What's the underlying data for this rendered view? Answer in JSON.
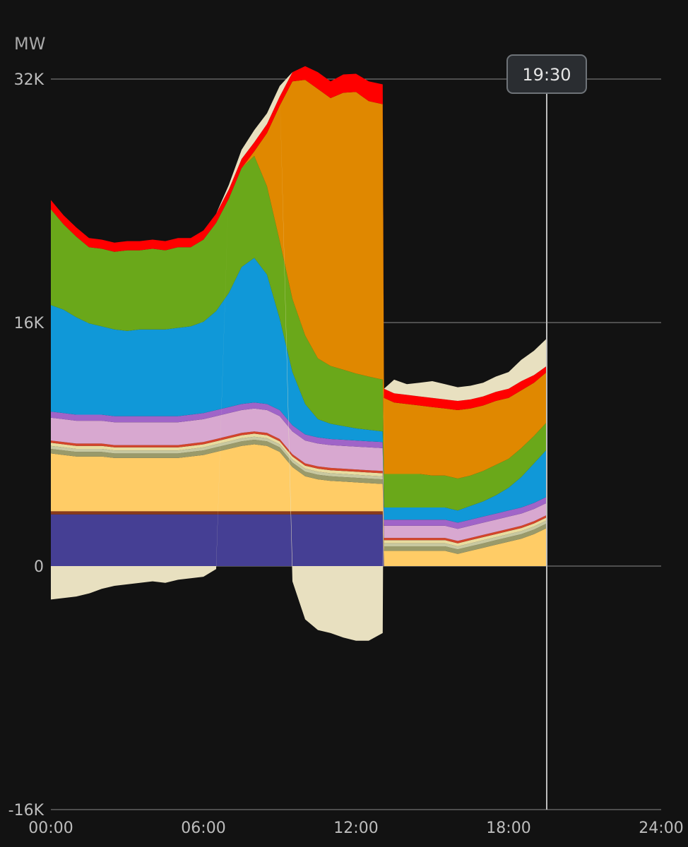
{
  "chart_data": {
    "type": "area",
    "stacked": true,
    "unit": "MW",
    "x_axis": {
      "min": "00:00",
      "max": "24:00",
      "tick_labels": [
        "00:00",
        "06:00",
        "12:00",
        "18:00",
        "24:00"
      ]
    },
    "y_axis": {
      "min": -16000,
      "max": 32000,
      "tick_values": [
        -16000,
        0,
        16000,
        32000
      ],
      "tick_labels": [
        "-16K",
        "0",
        "16K",
        "32K"
      ]
    },
    "gridlines": true,
    "cursor": {
      "time": "19:30",
      "label": "19:30"
    },
    "x_hours": [
      0,
      0.5,
      1,
      1.5,
      2,
      2.5,
      3,
      3.5,
      4,
      4.5,
      5,
      5.5,
      6,
      6.5,
      7,
      7.5,
      8,
      8.5,
      9,
      9.5,
      10,
      10.5,
      11,
      11.5,
      12,
      12.5,
      13.05,
      13.1,
      13.5,
      14,
      14.5,
      15,
      15.5,
      16,
      16.5,
      17,
      17.5,
      18,
      18.5,
      19,
      19.5
    ],
    "series": [
      {
        "color": "#453f94",
        "values": [
          3400,
          3400,
          3400,
          3400,
          3400,
          3400,
          3400,
          3400,
          3400,
          3400,
          3400,
          3400,
          3400,
          3400,
          3400,
          3400,
          3400,
          3400,
          3400,
          3400,
          3400,
          3400,
          3400,
          3400,
          3400,
          3400,
          3400,
          0,
          0,
          0,
          0,
          0,
          0,
          0,
          0,
          0,
          0,
          0,
          0,
          0,
          0
        ]
      },
      {
        "color": "#8a3a1a",
        "values": [
          200,
          200,
          200,
          200,
          200,
          200,
          200,
          200,
          200,
          200,
          200,
          200,
          200,
          200,
          200,
          200,
          200,
          200,
          200,
          200,
          200,
          200,
          200,
          200,
          200,
          200,
          200,
          0,
          0,
          0,
          0,
          0,
          0,
          0,
          0,
          0,
          0,
          0,
          0,
          0,
          0
        ]
      },
      {
        "color": "#ffcc66",
        "values": [
          3800,
          3700,
          3600,
          3600,
          3600,
          3500,
          3500,
          3500,
          3500,
          3500,
          3500,
          3600,
          3700,
          3900,
          4100,
          4300,
          4400,
          4300,
          3900,
          2900,
          2300,
          2100,
          2000,
          1950,
          1900,
          1850,
          1800,
          1000,
          1000,
          1000,
          1000,
          1000,
          1000,
          800,
          1000,
          1200,
          1400,
          1600,
          1800,
          2100,
          2500
        ]
      },
      {
        "color": "#9a9a6a",
        "values": [
          300,
          300,
          300,
          300,
          300,
          300,
          300,
          300,
          300,
          300,
          300,
          300,
          300,
          300,
          300,
          300,
          300,
          300,
          300,
          300,
          300,
          300,
          300,
          300,
          300,
          300,
          300,
          300,
          300,
          300,
          300,
          300,
          300,
          300,
          300,
          300,
          300,
          300,
          300,
          300,
          300
        ]
      },
      {
        "color": "#c8c8a0",
        "values": [
          200,
          200,
          200,
          200,
          200,
          200,
          200,
          200,
          200,
          200,
          200,
          200,
          200,
          200,
          200,
          200,
          200,
          200,
          200,
          200,
          200,
          200,
          200,
          200,
          200,
          200,
          200,
          200,
          200,
          200,
          200,
          200,
          200,
          200,
          200,
          200,
          200,
          200,
          200,
          200,
          200
        ]
      },
      {
        "color": "#e8dca0",
        "values": [
          200,
          200,
          200,
          200,
          200,
          200,
          200,
          200,
          200,
          200,
          200,
          200,
          200,
          200,
          200,
          200,
          200,
          200,
          200,
          200,
          200,
          200,
          200,
          200,
          200,
          200,
          200,
          200,
          200,
          200,
          200,
          200,
          200,
          200,
          200,
          200,
          200,
          200,
          200,
          200,
          200
        ]
      },
      {
        "color": "#d4442a",
        "values": [
          150,
          150,
          150,
          150,
          150,
          150,
          150,
          150,
          150,
          150,
          150,
          150,
          150,
          150,
          150,
          150,
          150,
          150,
          150,
          150,
          150,
          150,
          150,
          150,
          150,
          150,
          150,
          150,
          150,
          150,
          150,
          150,
          150,
          150,
          150,
          150,
          150,
          150,
          150,
          150,
          150
        ]
      },
      {
        "color": "#d8a8d0",
        "values": [
          1500,
          1500,
          1500,
          1500,
          1500,
          1500,
          1500,
          1500,
          1500,
          1500,
          1500,
          1500,
          1500,
          1500,
          1500,
          1500,
          1500,
          1500,
          1500,
          1500,
          1500,
          1500,
          1500,
          1500,
          1500,
          1500,
          1500,
          800,
          800,
          800,
          800,
          800,
          800,
          800,
          800,
          800,
          800,
          800,
          800,
          800,
          800
        ]
      },
      {
        "color": "#a064c8",
        "values": [
          400,
          400,
          400,
          400,
          400,
          400,
          400,
          400,
          400,
          400,
          400,
          400,
          400,
          400,
          400,
          400,
          400,
          400,
          400,
          400,
          400,
          400,
          400,
          400,
          400,
          400,
          400,
          400,
          400,
          400,
          400,
          400,
          400,
          400,
          400,
          400,
          400,
          400,
          400,
          400,
          400
        ]
      },
      {
        "color": "#1098d8",
        "values": [
          7000,
          6800,
          6400,
          6000,
          5800,
          5700,
          5600,
          5700,
          5700,
          5700,
          5800,
          5800,
          6000,
          6500,
          7500,
          9000,
          9500,
          8500,
          6000,
          3500,
          2000,
          1200,
          1000,
          900,
          800,
          750,
          700,
          800,
          800,
          800,
          800,
          800,
          800,
          800,
          900,
          1000,
          1200,
          1500,
          2000,
          2600,
          3100
        ]
      },
      {
        "color": "#6aa81a",
        "values": [
          6300,
          5600,
          5300,
          5000,
          5100,
          5100,
          5300,
          5200,
          5300,
          5200,
          5300,
          5200,
          5400,
          5800,
          6200,
          6500,
          6700,
          5800,
          5100,
          4800,
          4500,
          4000,
          3800,
          3700,
          3600,
          3500,
          3400,
          2200,
          2200,
          2200,
          2200,
          2100,
          2100,
          2100,
          2000,
          2000,
          2000,
          1900,
          1900,
          1800,
          1800
        ]
      },
      {
        "color": "#e08800",
        "values": [
          0,
          0,
          0,
          0,
          0,
          0,
          0,
          0,
          0,
          0,
          0,
          0,
          0,
          0,
          0,
          0,
          300,
          3500,
          8900,
          14300,
          16800,
          17700,
          17600,
          18200,
          18500,
          18100,
          18100,
          5000,
          4700,
          4600,
          4500,
          4500,
          4400,
          4500,
          4400,
          4300,
          4200,
          4000,
          3800,
          3500,
          3300
        ]
      },
      {
        "color": "#ff0000",
        "values": [
          600,
          600,
          600,
          600,
          600,
          600,
          600,
          600,
          600,
          600,
          600,
          600,
          600,
          600,
          600,
          600,
          600,
          600,
          600,
          600,
          900,
          1100,
          1100,
          1200,
          1200,
          1300,
          1300,
          600,
          600,
          600,
          600,
          600,
          600,
          600,
          600,
          600,
          600,
          600,
          600,
          500,
          400
        ]
      },
      {
        "color": "#e8e0c0",
        "values": [
          0,
          0,
          0,
          0,
          0,
          0,
          0,
          0,
          0,
          0,
          0,
          0,
          0,
          0,
          300,
          600,
          800,
          700,
          700,
          0,
          0,
          0,
          0,
          0,
          0,
          0,
          0,
          0,
          900,
          700,
          900,
          1100,
          1000,
          900,
          900,
          900,
          1000,
          1100,
          1400,
          1600,
          1800
        ]
      },
      {
        "color": "#e8e0c0",
        "values": [
          -2200,
          -2100,
          -2000,
          -1800,
          -1500,
          -1300,
          -1200,
          -1100,
          -1000,
          -1100,
          -900,
          -800,
          -700,
          -200,
          0,
          0,
          0,
          0,
          0,
          -1000,
          -3500,
          -4200,
          -4400,
          -4700,
          -4900,
          -4900,
          -4400,
          0,
          0,
          0,
          0,
          0,
          0,
          0,
          0,
          0,
          0,
          0,
          0,
          0,
          0
        ]
      }
    ]
  }
}
